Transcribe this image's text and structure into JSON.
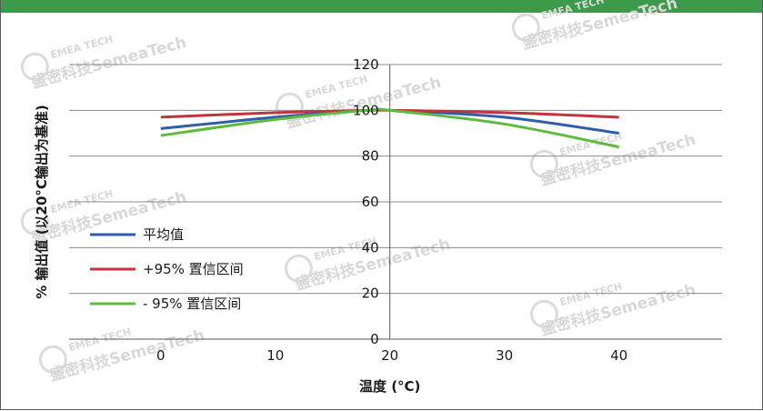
{
  "chart_data": {
    "type": "line",
    "xlabel": "温度 (°C)",
    "ylabel": "% 输出值 (以20°C输出为基准)",
    "xlim": [
      -8,
      49
    ],
    "ylim": [
      0,
      120
    ],
    "xticks": [
      0,
      10,
      20,
      30,
      40
    ],
    "yticks": [
      0,
      20,
      40,
      60,
      80,
      100,
      120
    ],
    "grid": "horizontal",
    "legend_position": "left",
    "series": [
      {
        "name": "平均值",
        "color": "#2f5ea8",
        "x": [
          0,
          10,
          18,
          20,
          30,
          40
        ],
        "y": [
          92,
          97,
          100,
          100,
          97,
          90
        ]
      },
      {
        "name": "+95% 置信区间",
        "color": "#c0343b",
        "x": [
          0,
          10,
          18,
          20,
          30,
          40
        ],
        "y": [
          97,
          99,
          100,
          100,
          99,
          97
        ]
      },
      {
        "name": "- 95% 置信区间",
        "color": "#5dbb3f",
        "x": [
          0,
          10,
          18,
          20,
          30,
          40
        ],
        "y": [
          89,
          96,
          100,
          100,
          94,
          84
        ]
      }
    ]
  },
  "watermark": {
    "text": "盛密科技SemeaTech",
    "logo": "EMEA TECH"
  },
  "colors": {
    "header_bar": "#3c9a4b",
    "grid": "#8c8c8c",
    "axis": "#5a5a5a"
  }
}
